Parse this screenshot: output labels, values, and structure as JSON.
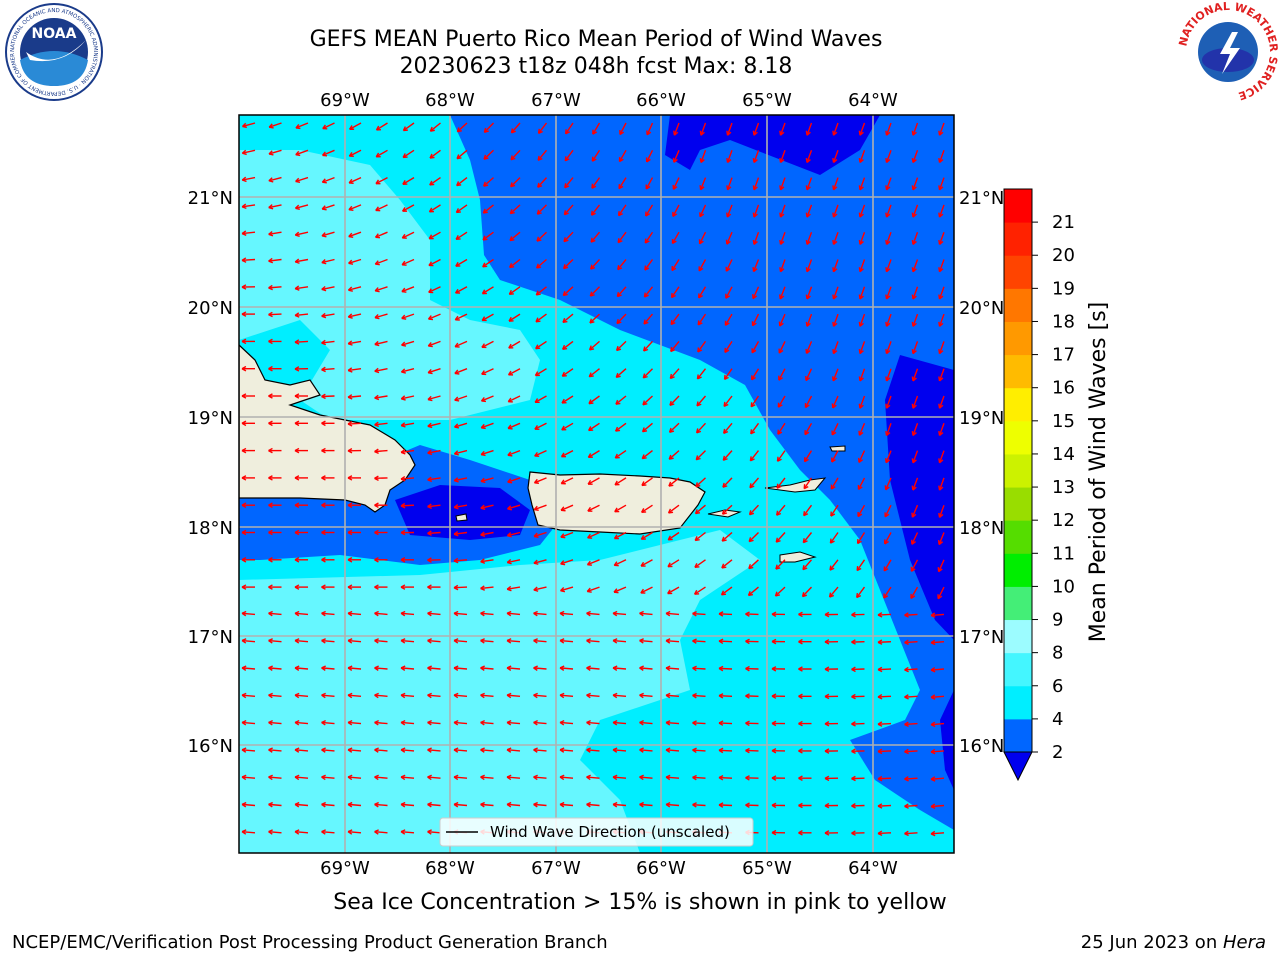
{
  "header": {
    "title_line1": "GEFS MEAN Puerto Rico Mean Period of Wind Waves",
    "title_line2": "20230623 t18z 048h fcst   Max: 8.18"
  },
  "logos": {
    "left": {
      "name": "NOAA",
      "ring_text": "NATIONAL OCEANIC AND ATMOSPHERIC ADMINISTRATION · U.S. DEPARTMENT OF COMMERCE"
    },
    "right": {
      "name": "NATIONAL WEATHER SERVICE"
    }
  },
  "map": {
    "lon_labels": [
      "69°W",
      "68°W",
      "67°W",
      "66°W",
      "65°W",
      "64°W"
    ],
    "lat_labels": [
      "21°N",
      "20°N",
      "19°N",
      "18°N",
      "17°N",
      "16°N"
    ],
    "legend_label": "Wind Wave Direction (unscaled)",
    "land_color": "#efeedd",
    "arrow_color": "#ff0000"
  },
  "colorbar": {
    "label": "Mean Period of Wind Waves [s]",
    "ticks": [
      "2",
      "4",
      "6",
      "8",
      "9",
      "10",
      "11",
      "12",
      "13",
      "14",
      "15",
      "16",
      "17",
      "18",
      "19",
      "20",
      "21"
    ],
    "colors": [
      "#0066ff",
      "#00eeff",
      "#44f6ff",
      "#9cfcff",
      "#44ee77",
      "#00ee00",
      "#55dd00",
      "#99dd00",
      "#ccf200",
      "#eeff00",
      "#ffee00",
      "#ffbb00",
      "#ff9900",
      "#ff7700",
      "#ff4400",
      "#ff2200",
      "#ff0000"
    ],
    "under_color": "#0000ee"
  },
  "caption": "Sea Ice Concentration > 15% is shown in pink to yellow",
  "footer": {
    "left": "NCEP/EMC/Verification Post Processing Product Generation Branch",
    "right_date": "25 Jun 2023 on ",
    "right_host": "Hera"
  }
}
